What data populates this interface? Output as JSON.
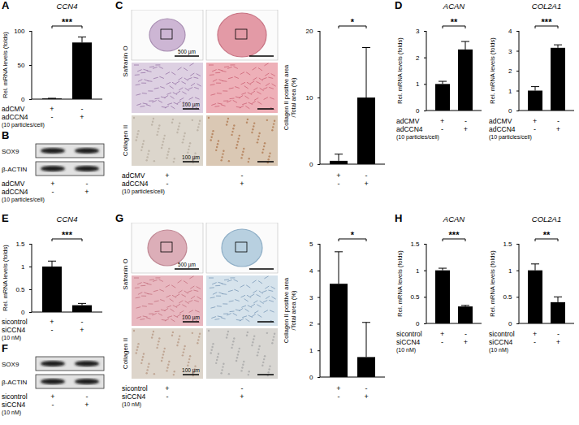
{
  "chart_data": [
    {
      "panel": "A",
      "type": "bar",
      "title": "CCN4",
      "y_label": "Rel. mRNA levels (folds)",
      "categories": [
        null,
        null
      ],
      "values": [
        1,
        83
      ],
      "errors": [
        0.3,
        8
      ],
      "significance": "***",
      "color": "#000000",
      "ylim": [
        0,
        100
      ],
      "yticks": [
        0,
        50,
        100
      ],
      "tick_labels": "y",
      "conditions": [
        {
          "label": "adCMV",
          "marks": [
            "+",
            "-"
          ]
        },
        {
          "label": "adCCN4",
          "sublabel": "(10 particles/cell)",
          "marks": [
            "-",
            "+"
          ]
        }
      ]
    },
    {
      "type": "bar",
      "y_label": [
        "Collagen II positive area",
        "/Total area (%)"
      ],
      "categories": [
        null,
        null
      ],
      "values": [
        0.5,
        10
      ],
      "errors": [
        1,
        7.5
      ],
      "significance": "*",
      "color": "#000000",
      "ylim": [
        0,
        20
      ],
      "yticks": [
        0,
        10,
        20
      ],
      "tick_labels": "y",
      "conditions": [
        {
          "marks": [
            "+",
            "-"
          ]
        },
        {
          "marks": [
            "-",
            "+"
          ]
        }
      ]
    },
    {
      "panel": "D",
      "type": "bar",
      "title": "ACAN",
      "y_label": "Rel. mRNA levels (folds)",
      "categories": [
        null,
        null
      ],
      "values": [
        1,
        2.3
      ],
      "errors": [
        0.1,
        0.3
      ],
      "significance": "**",
      "color": "#000000",
      "ylim": [
        0,
        3
      ],
      "yticks": [
        0,
        1,
        2,
        3
      ],
      "tick_labels": "y",
      "conditions": [
        {
          "label": "adCMV",
          "marks": [
            "+",
            "-"
          ]
        },
        {
          "label": "adCCN4",
          "sublabel": "(10 particles/cell)",
          "marks": [
            "-",
            "+"
          ]
        }
      ]
    },
    {
      "type": "bar",
      "title": "COL2A1",
      "y_label": "Rel. mRNA levels (folds)",
      "categories": [
        null,
        null
      ],
      "values": [
        1,
        3.15
      ],
      "errors": [
        0.2,
        0.15
      ],
      "significance": "***",
      "color": "#000000",
      "ylim": [
        0,
        4
      ],
      "yticks": [
        0,
        1,
        2,
        3,
        4
      ],
      "tick_labels": "y",
      "conditions": [
        {
          "label": "adCMV",
          "marks": [
            "+",
            "-"
          ]
        },
        {
          "label": "adCCN4",
          "sublabel": "(10 particles/cell)",
          "marks": [
            "-",
            "+"
          ]
        }
      ]
    },
    {
      "panel": "E",
      "type": "bar",
      "title": "CCN4",
      "y_label": "Rel. mRNA levels (folds)",
      "categories": [
        null,
        null
      ],
      "values": [
        1,
        0.15
      ],
      "errors": [
        0.12,
        0.04
      ],
      "significance": "***",
      "color": "#000000",
      "ylim": [
        0,
        1.5
      ],
      "yticks": [
        0,
        0.5,
        1,
        1.5
      ],
      "tick_labels": "y",
      "conditions": [
        {
          "label": "sicontrol",
          "marks": [
            "+",
            "-"
          ]
        },
        {
          "label": "siCCN4",
          "sublabel": "(10 nM)",
          "marks": [
            "-",
            "+"
          ]
        }
      ]
    },
    {
      "type": "bar",
      "y_label": [
        "Collagen II positive area",
        "/Total area (%)"
      ],
      "categories": [
        null,
        null
      ],
      "values": [
        3.5,
        0.75
      ],
      "errors": [
        1.2,
        1.3
      ],
      "significance": "*",
      "color": "#000000",
      "ylim": [
        0,
        5
      ],
      "yticks": [
        0,
        1,
        2,
        3,
        4,
        5
      ],
      "tick_labels": "y",
      "conditions": [
        {
          "marks": [
            "+",
            "-"
          ]
        },
        {
          "marks": [
            "-",
            "+"
          ]
        }
      ]
    },
    {
      "panel": "H",
      "type": "bar",
      "title": "ACAN",
      "y_label": "Rel. mRNA levels (folds)",
      "categories": [
        null,
        null
      ],
      "values": [
        1,
        0.32
      ],
      "errors": [
        0.04,
        0.02
      ],
      "significance": "***",
      "color": "#000000",
      "ylim": [
        0,
        1.5
      ],
      "yticks": [
        0,
        0.5,
        1,
        1.5
      ],
      "tick_labels": "y",
      "conditions": [
        {
          "label": "sicontrol",
          "marks": [
            "+",
            "-"
          ]
        },
        {
          "label": "siCCN4",
          "sublabel": "(10 nM)",
          "marks": [
            "-",
            "+"
          ]
        }
      ]
    },
    {
      "type": "bar",
      "title": "COL2A1",
      "y_label": "Rel. mRNA levels (folds)",
      "categories": [
        null,
        null
      ],
      "values": [
        1,
        0.4
      ],
      "errors": [
        0.12,
        0.1
      ],
      "significance": "**",
      "color": "#000000",
      "ylim": [
        0,
        1.5
      ],
      "yticks": [
        0,
        0.5,
        1,
        1.5
      ],
      "tick_labels": "y",
      "conditions": [
        {
          "label": "sicontrol",
          "marks": [
            "+",
            "-"
          ]
        },
        {
          "label": "siCCN4",
          "sublabel": "(10 nM)",
          "marks": [
            "-",
            "+"
          ]
        }
      ]
    }
  ],
  "blots": [
    {
      "panel": "B",
      "bands": [
        "SOX9",
        "β-ACTIN"
      ],
      "conditions": [
        {
          "label": "adCMV",
          "marks": [
            "+",
            "-"
          ]
        },
        {
          "label": "adCCN4",
          "sublabel": "(10 particles/cell)",
          "marks": [
            "-",
            "+"
          ]
        }
      ]
    },
    {
      "panel": "F",
      "bands": [
        "SOX9",
        "β-ACTIN"
      ],
      "conditions": [
        {
          "label": "sicontrol",
          "marks": [
            "+",
            "-"
          ]
        },
        {
          "label": "siCCN4",
          "sublabel": "(10 nM)",
          "marks": [
            "-",
            "+"
          ]
        }
      ]
    }
  ],
  "histology": [
    {
      "panel": "C",
      "stains": [
        "Safranin O",
        "Collagen II"
      ],
      "scale_bars": [
        "500 µm",
        "100 µm",
        "100 µm"
      ],
      "conditions": [
        {
          "label": "adCMV",
          "marks": [
            "+",
            "-"
          ]
        },
        {
          "label": "adCCN4",
          "sublabel": "(10 particles/cell)",
          "marks": [
            "-",
            "+"
          ]
        }
      ]
    },
    {
      "panel": "G",
      "stains": [
        "Safranin O",
        "Collagen II"
      ],
      "scale_bars": [
        "500 µm",
        "100 µm",
        "100 µm"
      ],
      "conditions": [
        {
          "label": "sicontrol",
          "marks": [
            "+",
            "-"
          ]
        },
        {
          "label": "siCCN4",
          "sublabel": "(10 nM)",
          "marks": [
            "-",
            "+"
          ]
        }
      ]
    }
  ]
}
